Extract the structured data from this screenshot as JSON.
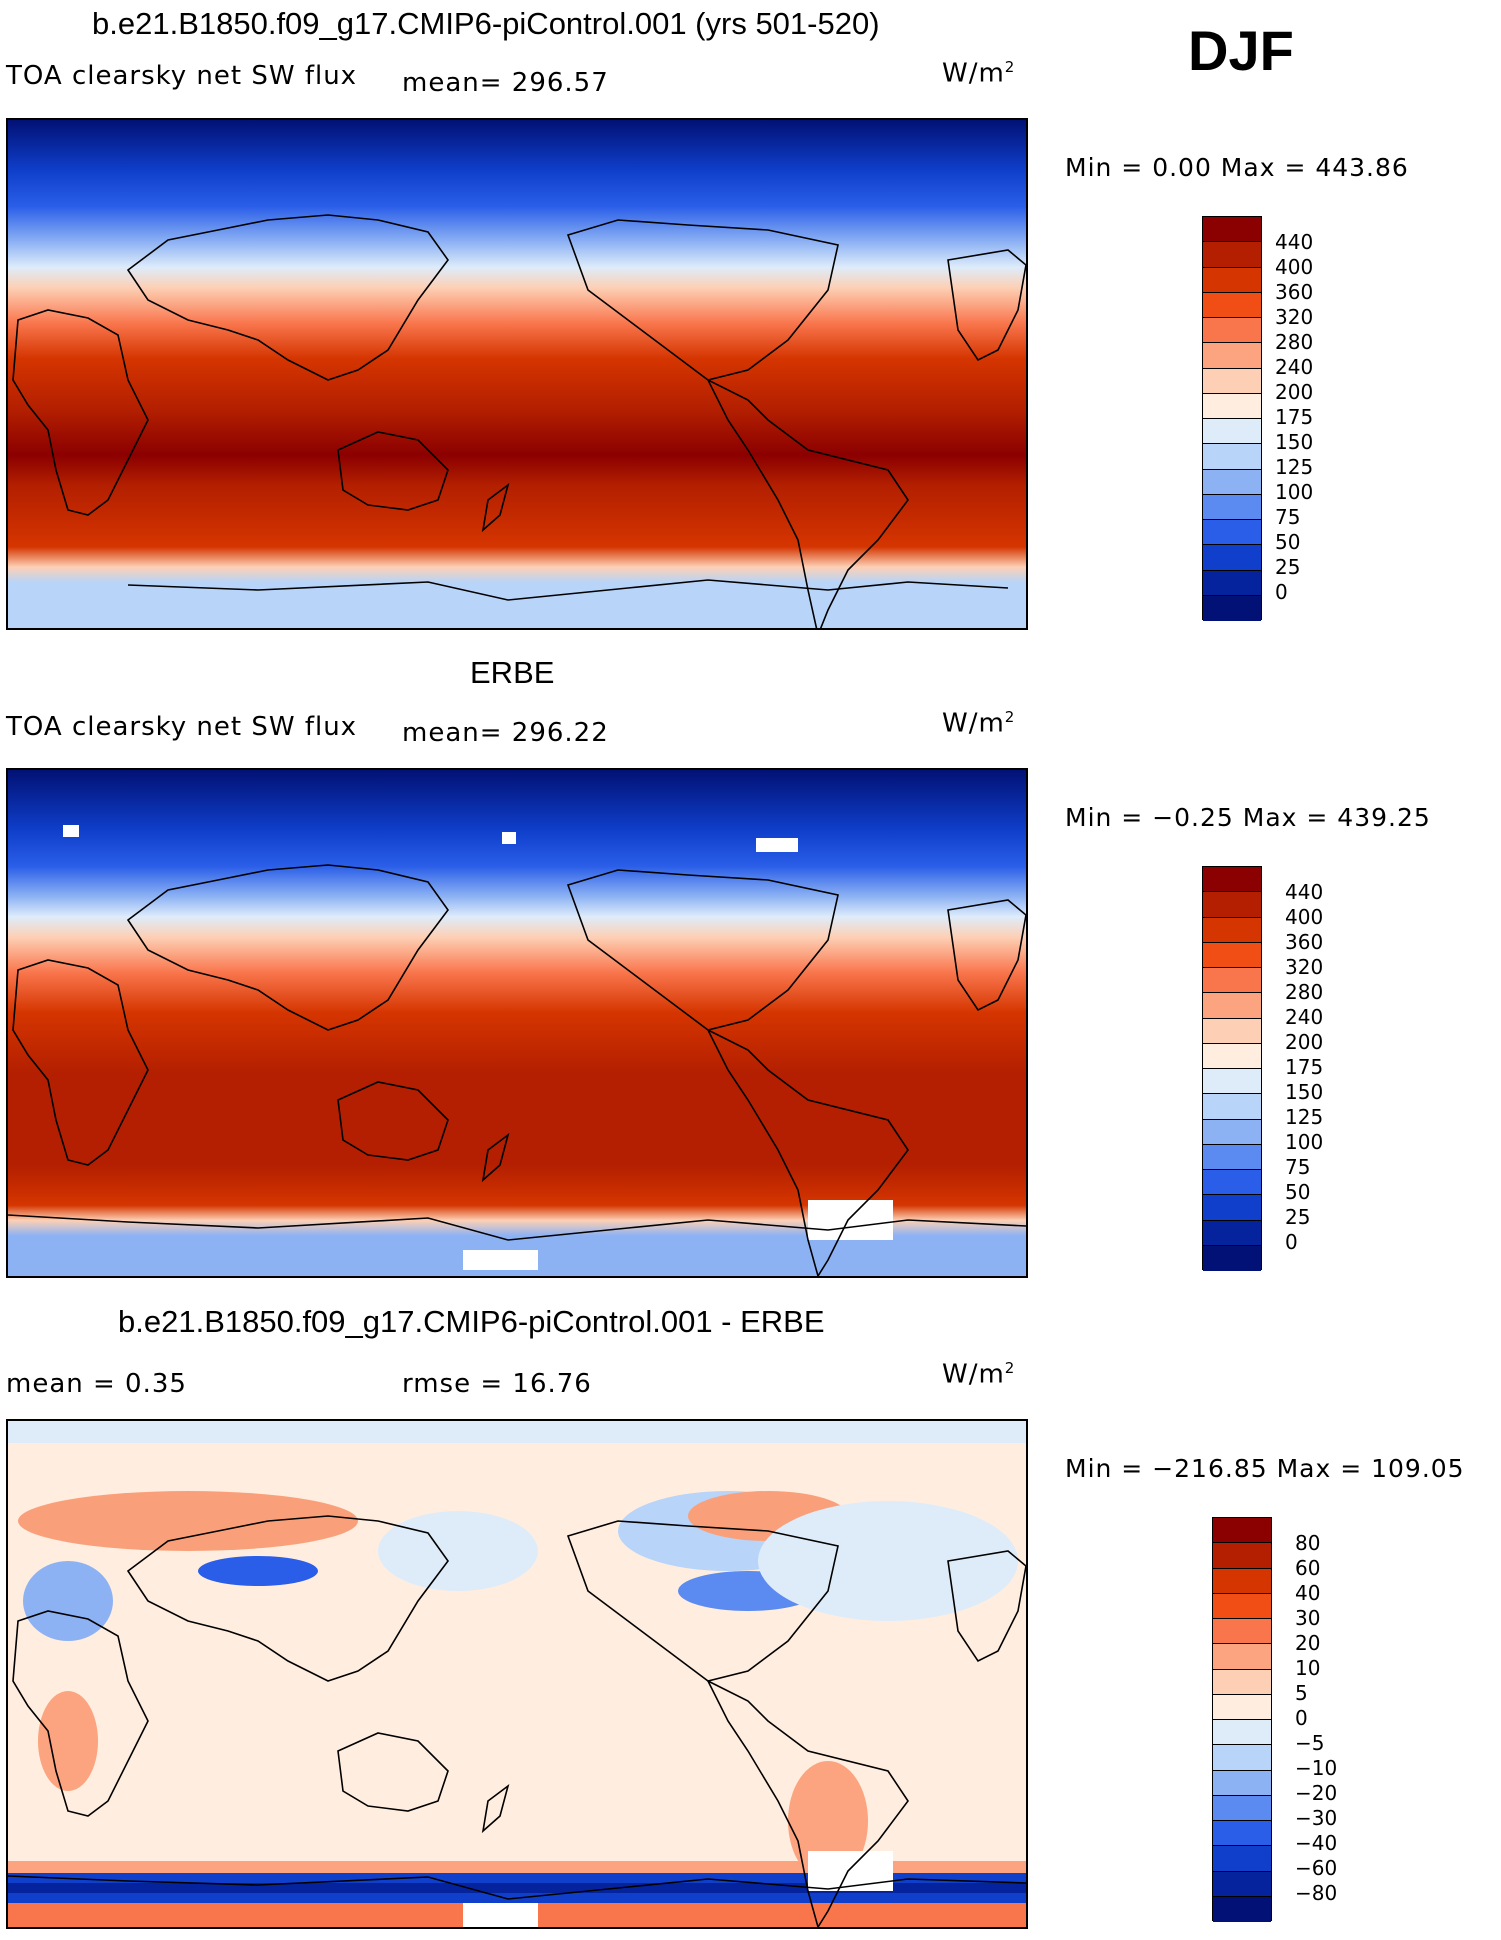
{
  "season": "DJF",
  "units_base": "W/m",
  "units_exp": "2",
  "panels": [
    {
      "id": "model",
      "title": "b.e21.B1850.f09_g17.CMIP6-piControl.001 (yrs 501-520)",
      "variable": "TOA clearsky net SW flux",
      "stat1": "mean= 296.57",
      "stat2": "",
      "minmax": "Min =    0.00 Max = 443.86",
      "colorbar": {
        "labels": [
          "440",
          "400",
          "360",
          "320",
          "280",
          "240",
          "200",
          "175",
          "150",
          "125",
          "100",
          "75",
          "50",
          "25",
          "0"
        ],
        "colors": [
          "#8b0000",
          "#b31f00",
          "#d53500",
          "#f04e14",
          "#f9764d",
          "#fca37f",
          "#fdd0b5",
          "#ffeedf",
          "#deecfa",
          "#b8d4f8",
          "#8db2f4",
          "#5b8af0",
          "#2a5ee8",
          "#0f3fcb",
          "#06239e",
          "#021175"
        ]
      }
    },
    {
      "id": "obs",
      "title": "ERBE",
      "variable": "TOA clearsky net SW flux",
      "stat1": "mean= 296.22",
      "stat2": "",
      "minmax": "Min =  −0.25 Max = 439.25",
      "colorbar": {
        "labels": [
          "440",
          "400",
          "360",
          "320",
          "280",
          "240",
          "200",
          "175",
          "150",
          "125",
          "100",
          "75",
          "50",
          "25",
          "0"
        ],
        "colors": [
          "#8b0000",
          "#b31f00",
          "#d53500",
          "#f04e14",
          "#f9764d",
          "#fca37f",
          "#fdd0b5",
          "#ffeedf",
          "#deecfa",
          "#b8d4f8",
          "#8db2f4",
          "#5b8af0",
          "#2a5ee8",
          "#0f3fcb",
          "#06239e",
          "#021175"
        ]
      }
    },
    {
      "id": "diff",
      "title": "b.e21.B1850.f09_g17.CMIP6-piControl.001 - ERBE",
      "variable": "",
      "stat1": "mean =    0.35",
      "stat2": "rmse =   16.76",
      "minmax": "Min = −216.85 Max = 109.05",
      "colorbar": {
        "labels": [
          "80",
          "60",
          "40",
          "30",
          "20",
          "10",
          "5",
          "0",
          "−5",
          "−10",
          "−20",
          "−30",
          "−40",
          "−60",
          "−80"
        ],
        "colors": [
          "#8b0000",
          "#b31f00",
          "#d53500",
          "#f04e14",
          "#f9764d",
          "#fca37f",
          "#fdd0b5",
          "#ffeedf",
          "#deecfa",
          "#b8d4f8",
          "#8db2f4",
          "#5b8af0",
          "#2a5ee8",
          "#0f3fcb",
          "#06239e",
          "#021175"
        ]
      }
    }
  ]
}
